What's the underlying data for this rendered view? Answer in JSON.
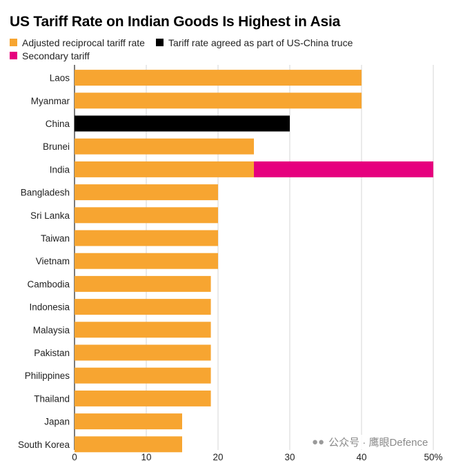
{
  "chart_data": {
    "type": "bar",
    "orientation": "horizontal",
    "stacked": true,
    "title": "US Tariff Rate on Indian Goods Is Highest in Asia",
    "categories": [
      "Laos",
      "Myanmar",
      "China",
      "Brunei",
      "India",
      "Bangladesh",
      "Sri Lanka",
      "Taiwan",
      "Vietnam",
      "Cambodia",
      "Indonesia",
      "Malaysia",
      "Pakistan",
      "Philippines",
      "Thailand",
      "Japan",
      "South Korea"
    ],
    "series": [
      {
        "name": "Adjusted reciprocal tariff rate",
        "color": "#F7A531",
        "values": [
          40,
          40,
          0,
          25,
          25,
          20,
          20,
          20,
          20,
          19,
          19,
          19,
          19,
          19,
          19,
          15,
          15
        ]
      },
      {
        "name": "Tariff rate agreed as part of US-China truce",
        "color": "#000000",
        "values": [
          0,
          0,
          30,
          0,
          0,
          0,
          0,
          0,
          0,
          0,
          0,
          0,
          0,
          0,
          0,
          0,
          0
        ]
      },
      {
        "name": "Secondary tariff",
        "color": "#E6007E",
        "values": [
          0,
          0,
          0,
          0,
          25,
          0,
          0,
          0,
          0,
          0,
          0,
          0,
          0,
          0,
          0,
          0,
          0
        ]
      }
    ],
    "xlim": [
      0,
      50
    ],
    "xticks": [
      "0",
      "10",
      "20",
      "30",
      "40",
      "50%"
    ],
    "grid": true,
    "legend_position": "top-left"
  },
  "watermark": {
    "icon": "wechat-icon",
    "text": "公众号 · 鹰眼Defence"
  }
}
